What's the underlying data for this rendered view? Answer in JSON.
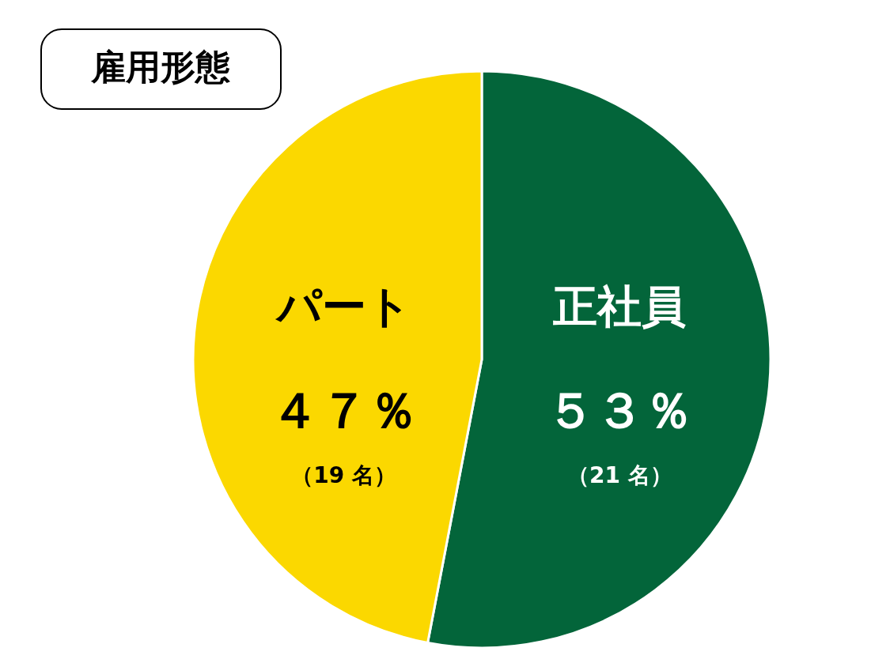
{
  "chart_data": {
    "type": "pie",
    "title": "雇用形態",
    "categories": [
      "正社員",
      "パート"
    ],
    "values": [
      53,
      47
    ],
    "colors": [
      "#03653a",
      "#fbd800"
    ],
    "value_labels": [
      "５３％",
      "４７％"
    ],
    "annotations": [
      "（21 名）",
      "（19 名）"
    ]
  }
}
